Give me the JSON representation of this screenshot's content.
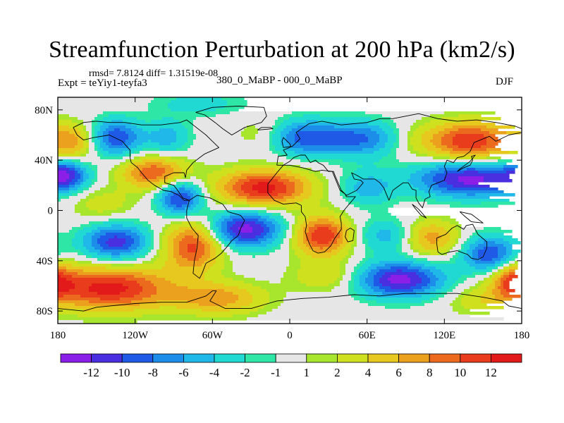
{
  "figure": {
    "title": "Streamfunction Perturbation at 200 hPa (km2/s)",
    "stats_line": "rmsd= 7.8124  diff= 1.31519e-08",
    "experiment": "Expt = teYiy1-teyfa3",
    "subtitle": "380_0_MaBP - 000_0_MaBP",
    "season": "DJF"
  },
  "chart_data": {
    "type": "heatmap",
    "title": "Streamfunction Perturbation at 200 hPa (km2/s)",
    "projection": "cylindrical equidistant",
    "xlim": [
      -180,
      180
    ],
    "ylim": [
      -90,
      90
    ],
    "x_ticks": [
      {
        "value": -180,
        "label": "180"
      },
      {
        "value": -120,
        "label": "120W"
      },
      {
        "value": -60,
        "label": "60W"
      },
      {
        "value": 0,
        "label": "0"
      },
      {
        "value": 60,
        "label": "60E"
      },
      {
        "value": 120,
        "label": "120E"
      },
      {
        "value": 180,
        "label": "180"
      }
    ],
    "y_ticks": [
      {
        "value": 80,
        "label": "80N"
      },
      {
        "value": 40,
        "label": "40N"
      },
      {
        "value": 0,
        "label": "0"
      },
      {
        "value": -40,
        "label": "40S"
      },
      {
        "value": -80,
        "label": "80S"
      }
    ],
    "colorbar": {
      "levels": [
        -12,
        -10,
        -8,
        -6,
        -4,
        -2,
        -1,
        1,
        2,
        4,
        6,
        8,
        10,
        12
      ],
      "labels": [
        "-12",
        "-10",
        "-8",
        "-6",
        "-4",
        "-2",
        "-1",
        "1",
        "2",
        "4",
        "6",
        "8",
        "10",
        "12"
      ],
      "colors": [
        "#8b1fe8",
        "#4a2fe0",
        "#1f5ae6",
        "#1c8eea",
        "#1fb8e8",
        "#1fd9d2",
        "#2ee6a6",
        "#e6e6e6",
        "#a8e62e",
        "#cfe01e",
        "#e6c81e",
        "#eba01e",
        "#ec6a1e",
        "#e83c1c",
        "#e21a1a"
      ]
    },
    "field_centers": [
      {
        "lon": -170,
        "lat": 55,
        "amp": 7,
        "slon": 14,
        "slat": 10
      },
      {
        "lon": -135,
        "lat": 58,
        "amp": -10,
        "slon": 14,
        "slat": 10
      },
      {
        "lon": -95,
        "lat": 58,
        "amp": -5,
        "slon": 12,
        "slat": 10
      },
      {
        "lon": -175,
        "lat": 28,
        "amp": -10,
        "slon": 12,
        "slat": 8
      },
      {
        "lon": -105,
        "lat": 30,
        "amp": 10,
        "slon": 18,
        "slat": 9
      },
      {
        "lon": -145,
        "lat": 5,
        "amp": 3,
        "slon": 18,
        "slat": 10
      },
      {
        "lon": -85,
        "lat": 10,
        "amp": -11,
        "slon": 12,
        "slat": 10
      },
      {
        "lon": -135,
        "lat": -25,
        "amp": -11,
        "slon": 18,
        "slat": 10
      },
      {
        "lon": -75,
        "lat": -28,
        "amp": 11,
        "slon": 16,
        "slat": 14
      },
      {
        "lon": -140,
        "lat": -62,
        "amp": 13,
        "slon": 34,
        "slat": 12
      },
      {
        "lon": -55,
        "lat": -70,
        "amp": 7,
        "slon": 25,
        "slat": 9
      },
      {
        "lon": -70,
        "lat": 85,
        "amp": -3,
        "slon": 25,
        "slat": 7
      },
      {
        "lon": -20,
        "lat": 60,
        "amp": 3,
        "slon": 15,
        "slat": 10
      },
      {
        "lon": 10,
        "lat": 58,
        "amp": -9,
        "slon": 20,
        "slat": 10
      },
      {
        "lon": 55,
        "lat": 57,
        "amp": -8,
        "slon": 20,
        "slat": 10
      },
      {
        "lon": 100,
        "lat": 55,
        "amp": 2,
        "slon": 15,
        "slat": 10
      },
      {
        "lon": 140,
        "lat": 55,
        "amp": 12,
        "slon": 22,
        "slat": 11
      },
      {
        "lon": -20,
        "lat": 18,
        "amp": 13,
        "slon": 25,
        "slat": 10
      },
      {
        "lon": 60,
        "lat": 18,
        "amp": -5,
        "slon": 15,
        "slat": 10
      },
      {
        "lon": 140,
        "lat": 25,
        "amp": -13,
        "slon": 30,
        "slat": 10
      },
      {
        "lon": -35,
        "lat": -15,
        "amp": -13,
        "slon": 20,
        "slat": 10
      },
      {
        "lon": 25,
        "lat": -20,
        "amp": 12,
        "slon": 15,
        "slat": 11
      },
      {
        "lon": 75,
        "lat": -20,
        "amp": -5,
        "slon": 15,
        "slat": 9
      },
      {
        "lon": 110,
        "lat": -22,
        "amp": 7,
        "slon": 15,
        "slat": 10
      },
      {
        "lon": 155,
        "lat": -35,
        "amp": -10,
        "slon": 15,
        "slat": 10
      },
      {
        "lon": 30,
        "lat": -52,
        "amp": 4,
        "slon": 20,
        "slat": 9
      },
      {
        "lon": 85,
        "lat": -55,
        "amp": -13,
        "slon": 24,
        "slat": 10
      },
      {
        "lon": 150,
        "lat": -72,
        "amp": 3,
        "slon": 20,
        "slat": 8
      },
      {
        "lon": 175,
        "lat": -55,
        "amp": 9,
        "slon": 12,
        "slat": 10
      }
    ],
    "coastlines": [
      [
        [
          -168,
          66
        ],
        [
          -160,
          70
        ],
        [
          -150,
          71
        ],
        [
          -140,
          70
        ],
        [
          -128,
          70
        ],
        [
          -115,
          68
        ],
        [
          -100,
          68
        ],
        [
          -85,
          70
        ],
        [
          -80,
          72
        ],
        [
          -75,
          68
        ],
        [
          -65,
          60
        ],
        [
          -60,
          55
        ],
        [
          -55,
          50
        ],
        [
          -66,
          45
        ],
        [
          -70,
          42
        ],
        [
          -75,
          38
        ],
        [
          -80,
          32
        ],
        [
          -81,
          26
        ],
        [
          -82,
          30
        ],
        [
          -90,
          30
        ],
        [
          -97,
          27
        ],
        [
          -97,
          22
        ],
        [
          -90,
          20
        ],
        [
          -87,
          16
        ],
        [
          -83,
          10
        ],
        [
          -78,
          8
        ],
        [
          -82,
          8
        ],
        [
          -86,
          12
        ],
        [
          -92,
          15
        ],
        [
          -98,
          16
        ],
        [
          -105,
          20
        ],
        [
          -110,
          24
        ],
        [
          -115,
          30
        ],
        [
          -118,
          34
        ],
        [
          -123,
          38
        ],
        [
          -124,
          42
        ],
        [
          -124,
          48
        ],
        [
          -130,
          55
        ],
        [
          -140,
          60
        ],
        [
          -152,
          58
        ],
        [
          -160,
          56
        ],
        [
          -165,
          60
        ],
        [
          -168,
          66
        ]
      ],
      [
        [
          -78,
          8
        ],
        [
          -72,
          12
        ],
        [
          -62,
          10
        ],
        [
          -52,
          5
        ],
        [
          -48,
          -1
        ],
        [
          -38,
          -4
        ],
        [
          -35,
          -8
        ],
        [
          -38,
          -14
        ],
        [
          -40,
          -20
        ],
        [
          -45,
          -24
        ],
        [
          -48,
          -28
        ],
        [
          -53,
          -34
        ],
        [
          -58,
          -38
        ],
        [
          -65,
          -42
        ],
        [
          -68,
          -50
        ],
        [
          -70,
          -54
        ],
        [
          -75,
          -50
        ],
        [
          -74,
          -40
        ],
        [
          -72,
          -30
        ],
        [
          -71,
          -20
        ],
        [
          -76,
          -14
        ],
        [
          -80,
          -6
        ],
        [
          -80,
          0
        ],
        [
          -78,
          8
        ]
      ],
      [
        [
          -73,
          78
        ],
        [
          -60,
          82
        ],
        [
          -40,
          83
        ],
        [
          -20,
          82
        ],
        [
          -18,
          75
        ],
        [
          -22,
          70
        ],
        [
          -35,
          66
        ],
        [
          -45,
          60
        ],
        [
          -52,
          65
        ],
        [
          -58,
          70
        ],
        [
          -66,
          76
        ],
        [
          -73,
          78
        ]
      ],
      [
        [
          -10,
          36
        ],
        [
          -9,
          43
        ],
        [
          -2,
          44
        ],
        [
          -5,
          48
        ],
        [
          2,
          51
        ],
        [
          5,
          54
        ],
        [
          8,
          57
        ],
        [
          5,
          62
        ],
        [
          15,
          69
        ],
        [
          25,
          71
        ],
        [
          40,
          68
        ],
        [
          60,
          70
        ],
        [
          70,
          73
        ],
        [
          80,
          73
        ],
        [
          100,
          77
        ],
        [
          115,
          73
        ],
        [
          130,
          71
        ],
        [
          145,
          72
        ],
        [
          160,
          70
        ],
        [
          175,
          67
        ],
        [
          180,
          65
        ],
        [
          180,
          62
        ],
        [
          170,
          60
        ],
        [
          160,
          55
        ],
        [
          155,
          59
        ],
        [
          143,
          54
        ],
        [
          140,
          47
        ],
        [
          135,
          43
        ],
        [
          130,
          42
        ],
        [
          127,
          38
        ],
        [
          122,
          40
        ],
        [
          120,
          35
        ],
        [
          122,
          30
        ],
        [
          120,
          24
        ],
        [
          110,
          20
        ],
        [
          108,
          15
        ],
        [
          109,
          11
        ],
        [
          105,
          9
        ],
        [
          103,
          2
        ],
        [
          100,
          6
        ],
        [
          98,
          10
        ],
        [
          98,
          16
        ],
        [
          95,
          17
        ],
        [
          92,
          22
        ],
        [
          88,
          22
        ],
        [
          80,
          16
        ],
        [
          77,
          8
        ],
        [
          73,
          18
        ],
        [
          70,
          22
        ],
        [
          66,
          25
        ],
        [
          57,
          25
        ],
        [
          52,
          28
        ],
        [
          48,
          30
        ],
        [
          50,
          25
        ],
        [
          55,
          24
        ],
        [
          57,
          22
        ],
        [
          52,
          16
        ],
        [
          44,
          12
        ],
        [
          40,
          16
        ],
        [
          35,
          28
        ],
        [
          34,
          31
        ],
        [
          30,
          31
        ],
        [
          26,
          36
        ],
        [
          22,
          38
        ],
        [
          20,
          40
        ],
        [
          16,
          38
        ],
        [
          12,
          44
        ],
        [
          8,
          44
        ],
        [
          3,
          42
        ],
        [
          0,
          39
        ],
        [
          -5,
          36
        ],
        [
          -10,
          36
        ]
      ],
      [
        [
          -17,
          21
        ],
        [
          -17,
          14
        ],
        [
          -12,
          8
        ],
        [
          -5,
          5
        ],
        [
          5,
          6
        ],
        [
          9,
          4
        ],
        [
          9,
          -1
        ],
        [
          12,
          -5
        ],
        [
          13,
          -12
        ],
        [
          12,
          -17
        ],
        [
          15,
          -26
        ],
        [
          18,
          -32
        ],
        [
          22,
          -34
        ],
        [
          27,
          -33
        ],
        [
          32,
          -28
        ],
        [
          35,
          -22
        ],
        [
          40,
          -15
        ],
        [
          40,
          -10
        ],
        [
          39,
          -5
        ],
        [
          42,
          0
        ],
        [
          51,
          11
        ],
        [
          44,
          11
        ],
        [
          43,
          13
        ],
        [
          39,
          16
        ],
        [
          35,
          26
        ],
        [
          33,
          31
        ],
        [
          25,
          32
        ],
        [
          20,
          31
        ],
        [
          10,
          34
        ],
        [
          0,
          36
        ],
        [
          -5,
          36
        ],
        [
          -10,
          30
        ],
        [
          -17,
          21
        ]
      ],
      [
        [
          114,
          -22
        ],
        [
          114,
          -26
        ],
        [
          115,
          -33
        ],
        [
          118,
          -35
        ],
        [
          124,
          -33
        ],
        [
          130,
          -32
        ],
        [
          135,
          -34
        ],
        [
          138,
          -35
        ],
        [
          141,
          -38
        ],
        [
          146,
          -39
        ],
        [
          150,
          -37
        ],
        [
          153,
          -30
        ],
        [
          153,
          -25
        ],
        [
          146,
          -19
        ],
        [
          142,
          -11
        ],
        [
          137,
          -12
        ],
        [
          135,
          -15
        ],
        [
          130,
          -12
        ],
        [
          126,
          -14
        ],
        [
          121,
          -19
        ],
        [
          114,
          -22
        ]
      ],
      [
        [
          44,
          -16
        ],
        [
          47,
          -14
        ],
        [
          50,
          -16
        ],
        [
          49,
          -24
        ],
        [
          45,
          -25
        ],
        [
          43,
          -21
        ],
        [
          44,
          -16
        ]
      ],
      [
        [
          -180,
          -78
        ],
        [
          -160,
          -80
        ],
        [
          -150,
          -77
        ],
        [
          -120,
          -74
        ],
        [
          -100,
          -73
        ],
        [
          -80,
          -73
        ],
        [
          -65,
          -68
        ],
        [
          -60,
          -64
        ],
        [
          -57,
          -64
        ],
        [
          -62,
          -72
        ],
        [
          -50,
          -78
        ],
        [
          -30,
          -78
        ],
        [
          -10,
          -72
        ],
        [
          10,
          -70
        ],
        [
          30,
          -69
        ],
        [
          50,
          -67
        ],
        [
          70,
          -68
        ],
        [
          90,
          -66
        ],
        [
          110,
          -66
        ],
        [
          130,
          -66
        ],
        [
          150,
          -69
        ],
        [
          165,
          -72
        ],
        [
          170,
          -76
        ],
        [
          180,
          -78
        ]
      ],
      [
        [
          -5,
          50
        ],
        [
          1,
          51
        ],
        [
          0,
          53
        ],
        [
          -3,
          56
        ],
        [
          -5,
          58
        ],
        [
          -6,
          55
        ],
        [
          -5,
          50
        ]
      ],
      [
        [
          130,
          31
        ],
        [
          135,
          34
        ],
        [
          140,
          36
        ],
        [
          142,
          40
        ],
        [
          141,
          43
        ],
        [
          144,
          44
        ],
        [
          140,
          39
        ],
        [
          136,
          36
        ],
        [
          132,
          33
        ],
        [
          130,
          31
        ]
      ],
      [
        [
          95,
          5
        ],
        [
          100,
          1
        ],
        [
          106,
          -6
        ],
        [
          102,
          -4
        ],
        [
          97,
          2
        ],
        [
          95,
          5
        ]
      ],
      [
        [
          132,
          -1
        ],
        [
          141,
          -3
        ],
        [
          150,
          -10
        ],
        [
          141,
          -9
        ],
        [
          135,
          -4
        ],
        [
          132,
          -1
        ]
      ],
      [
        [
          -25,
          64
        ],
        [
          -13,
          65
        ],
        [
          -15,
          66
        ],
        [
          -22,
          66
        ],
        [
          -25,
          64
        ]
      ]
    ]
  }
}
